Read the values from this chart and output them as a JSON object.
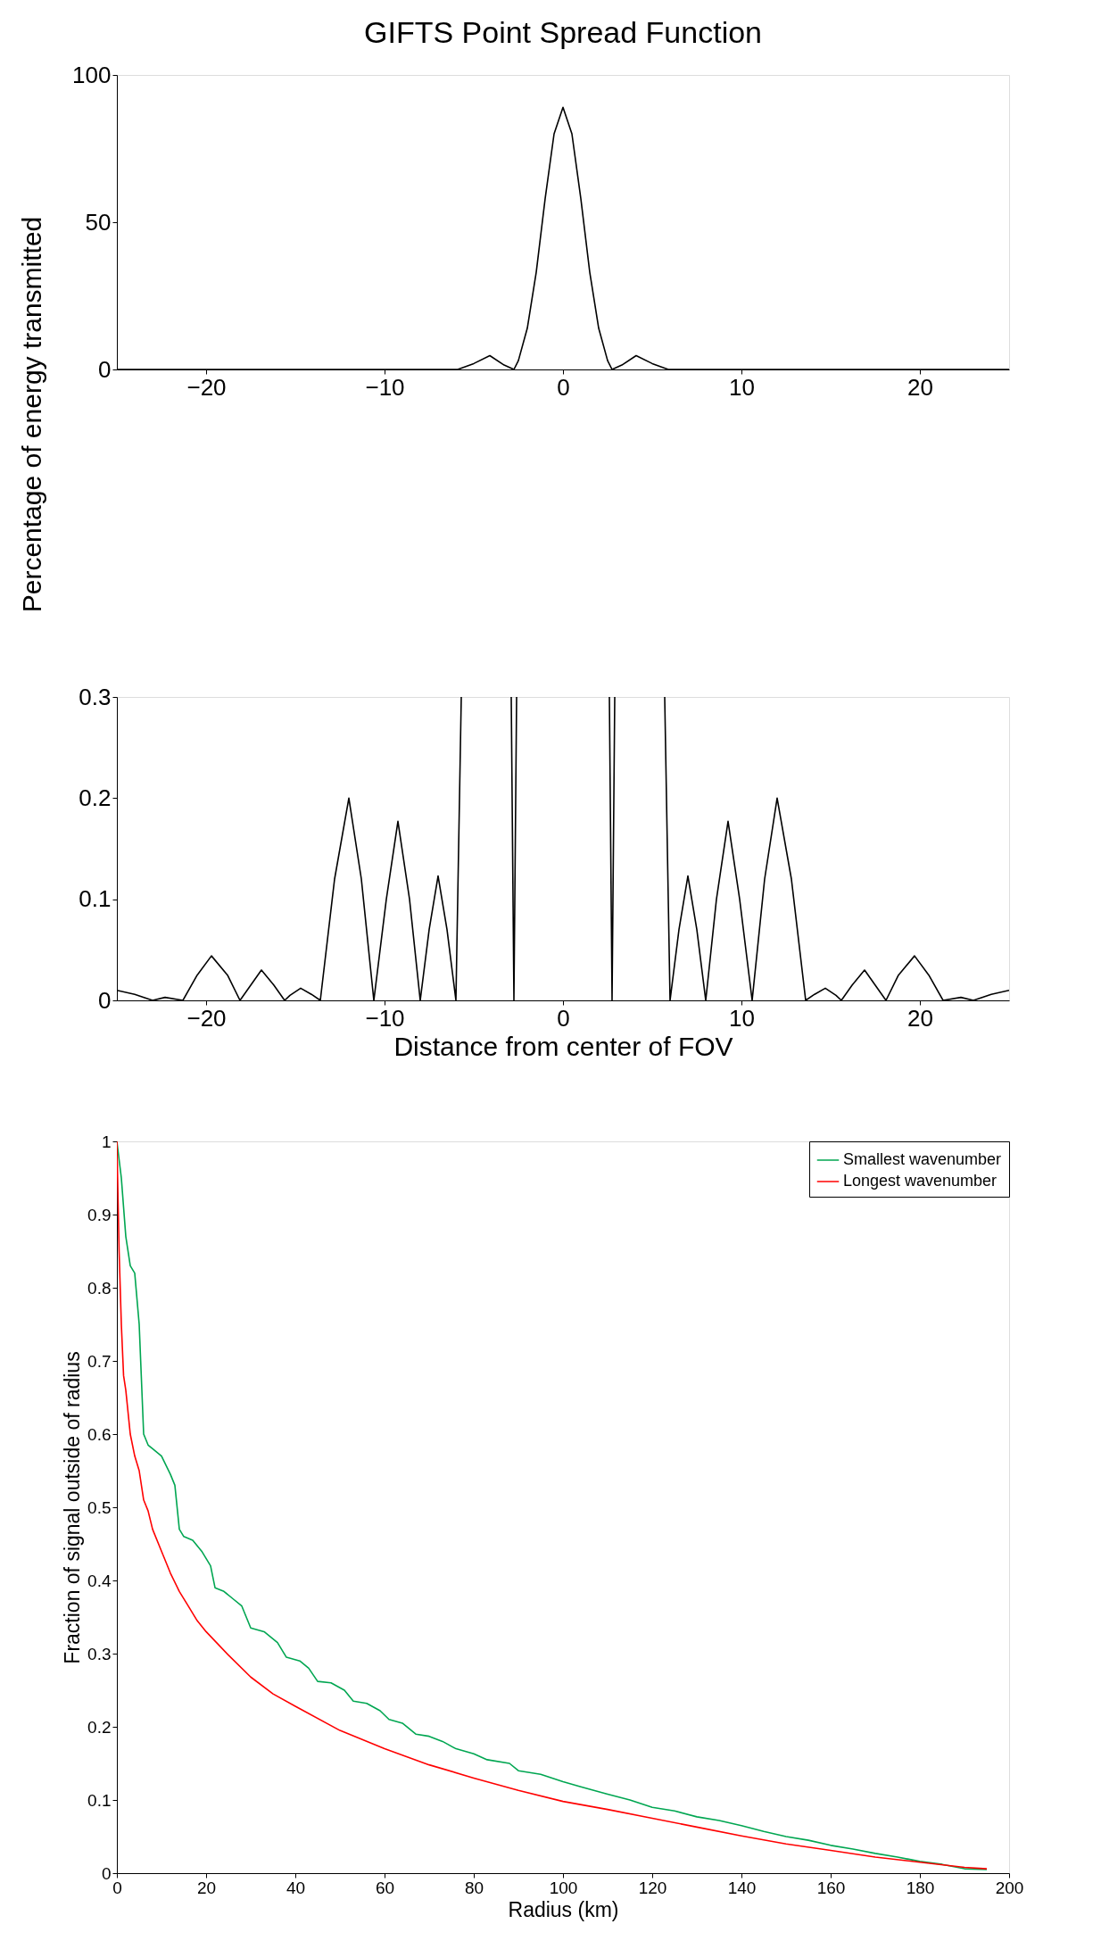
{
  "chart_data": [
    {
      "type": "line",
      "title": "GIFTS Point Spread Function",
      "ylabel": "Percentage of energy transmitted",
      "xlim": [
        -25,
        25
      ],
      "xticks": [
        -20,
        -10,
        0,
        10,
        20
      ],
      "ylim": [
        0,
        100
      ],
      "yticks": [
        0,
        50,
        100
      ],
      "x": [
        -25,
        -5.9,
        -5,
        -4.1,
        -3.3,
        -2.75,
        -2.5,
        -2,
        -1.5,
        -1,
        -0.5,
        0,
        0.5,
        1,
        1.5,
        2,
        2.5,
        2.75,
        3.3,
        4.1,
        5,
        5.9,
        25
      ],
      "series": [
        {
          "color": "#000000",
          "values": [
            0,
            0,
            2,
            4.7,
            1.5,
            0,
            3,
            14,
            33,
            58,
            80,
            89,
            80,
            58,
            33,
            14,
            3,
            0,
            1.5,
            4.7,
            2,
            0,
            0
          ]
        }
      ]
    },
    {
      "type": "line",
      "xlabel": "Distance from center of FOV",
      "xlim": [
        -25,
        25
      ],
      "xticks": [
        -20,
        -10,
        0,
        10,
        20
      ],
      "ylim": [
        0,
        0.3
      ],
      "yticks": [
        0,
        0.1,
        0.2,
        0.3
      ],
      "x": [
        -25,
        -24,
        -23,
        -22.3,
        -21.3,
        -20.5,
        -19.7,
        -18.8,
        -18.1,
        -17.5,
        -16.9,
        -16.2,
        -15.6,
        -15.3,
        -14.7,
        -14.1,
        -13.6,
        -12.8,
        -12,
        -11.3,
        -10.6,
        -9.9,
        -9.25,
        -8.6,
        -8,
        -7.5,
        -7,
        -6.5,
        -6,
        -5.7,
        -4.2,
        -2.9,
        -2.75,
        -2.6,
        0,
        2.6,
        2.75,
        2.9,
        4.2,
        5.7,
        6,
        6.5,
        7,
        7.5,
        8,
        8.6,
        9.25,
        9.9,
        10.6,
        11.3,
        12,
        12.8,
        13.6,
        14.1,
        14.7,
        15.3,
        15.6,
        16.2,
        16.9,
        17.5,
        18.1,
        18.8,
        19.7,
        20.5,
        21.3,
        22.3,
        23,
        24,
        25
      ],
      "series": [
        {
          "color": "#000000",
          "values": [
            0.01,
            0.006,
            0,
            0.003,
            0,
            0.025,
            0.044,
            0.025,
            0,
            0.015,
            0.03,
            0.015,
            0,
            0.005,
            0.012,
            0.006,
            0,
            0.12,
            0.2,
            0.12,
            0,
            0.1,
            0.177,
            0.1,
            0,
            0.07,
            0.123,
            0.07,
            0,
            0.3,
            null,
            0.3,
            0,
            0.3,
            null,
            0.3,
            0,
            0.3,
            null,
            0.3,
            0,
            0.07,
            0.123,
            0.07,
            0,
            0.1,
            0.177,
            0.1,
            0,
            0.12,
            0.2,
            0.12,
            0,
            0.006,
            0.012,
            0.005,
            0,
            0.015,
            0.03,
            0.015,
            0,
            0.025,
            0.044,
            0.025,
            0,
            0.003,
            0,
            0.006,
            0.01
          ]
        }
      ]
    },
    {
      "type": "line",
      "xlabel": "Radius (km)",
      "ylabel": "Fraction of signal outside of radius",
      "xlim": [
        0,
        200
      ],
      "xticks": [
        0,
        20,
        40,
        60,
        80,
        100,
        120,
        140,
        160,
        180,
        200
      ],
      "ylim": [
        0,
        1
      ],
      "yticks": [
        0,
        0.1,
        0.2,
        0.3,
        0.4,
        0.5,
        0.6,
        0.7,
        0.8,
        0.9,
        1
      ],
      "legend": "top right",
      "series": [
        {
          "name": "Smallest wavenumber",
          "color": "#00a651",
          "x": [
            0,
            1,
            2,
            3,
            4,
            5,
            6,
            7,
            8,
            10,
            12,
            13,
            14,
            15,
            17,
            19,
            21,
            22,
            24,
            26,
            28,
            30,
            33,
            36,
            38,
            41,
            43,
            45,
            48,
            51,
            53,
            56,
            59,
            61,
            64,
            67,
            70,
            73,
            76,
            80,
            83,
            88,
            90,
            95,
            100,
            104,
            110,
            115,
            120,
            125,
            130,
            135,
            140,
            145,
            150,
            155,
            160,
            165,
            170,
            175,
            180,
            185,
            190,
            195
          ],
          "values": [
            1.0,
            0.95,
            0.87,
            0.83,
            0.82,
            0.75,
            0.6,
            0.585,
            0.58,
            0.57,
            0.545,
            0.53,
            0.47,
            0.46,
            0.455,
            0.44,
            0.42,
            0.39,
            0.385,
            0.375,
            0.365,
            0.335,
            0.33,
            0.315,
            0.295,
            0.29,
            0.28,
            0.262,
            0.26,
            0.25,
            0.235,
            0.232,
            0.222,
            0.21,
            0.205,
            0.19,
            0.187,
            0.18,
            0.17,
            0.163,
            0.155,
            0.15,
            0.14,
            0.135,
            0.125,
            0.118,
            0.108,
            0.1,
            0.09,
            0.085,
            0.077,
            0.072,
            0.065,
            0.057,
            0.05,
            0.045,
            0.038,
            0.033,
            0.027,
            0.022,
            0.016,
            0.012,
            0.006,
            0.005
          ]
        },
        {
          "name": "Longest wavenumber",
          "color": "#ff0000",
          "x": [
            0,
            0.5,
            1,
            1.5,
            2,
            3,
            4,
            5,
            6,
            7,
            8,
            10,
            12,
            14,
            16,
            18,
            20,
            25,
            30,
            35,
            40,
            50,
            60,
            70,
            80,
            90,
            100,
            110,
            120,
            130,
            140,
            150,
            160,
            170,
            180,
            190,
            195
          ],
          "values": [
            1.0,
            0.85,
            0.75,
            0.68,
            0.66,
            0.6,
            0.57,
            0.55,
            0.51,
            0.495,
            0.47,
            0.44,
            0.41,
            0.385,
            0.365,
            0.345,
            0.33,
            0.298,
            0.268,
            0.245,
            0.228,
            0.195,
            0.17,
            0.148,
            0.13,
            0.113,
            0.098,
            0.087,
            0.075,
            0.063,
            0.051,
            0.04,
            0.031,
            0.022,
            0.015,
            0.008,
            0.006
          ]
        }
      ]
    }
  ]
}
